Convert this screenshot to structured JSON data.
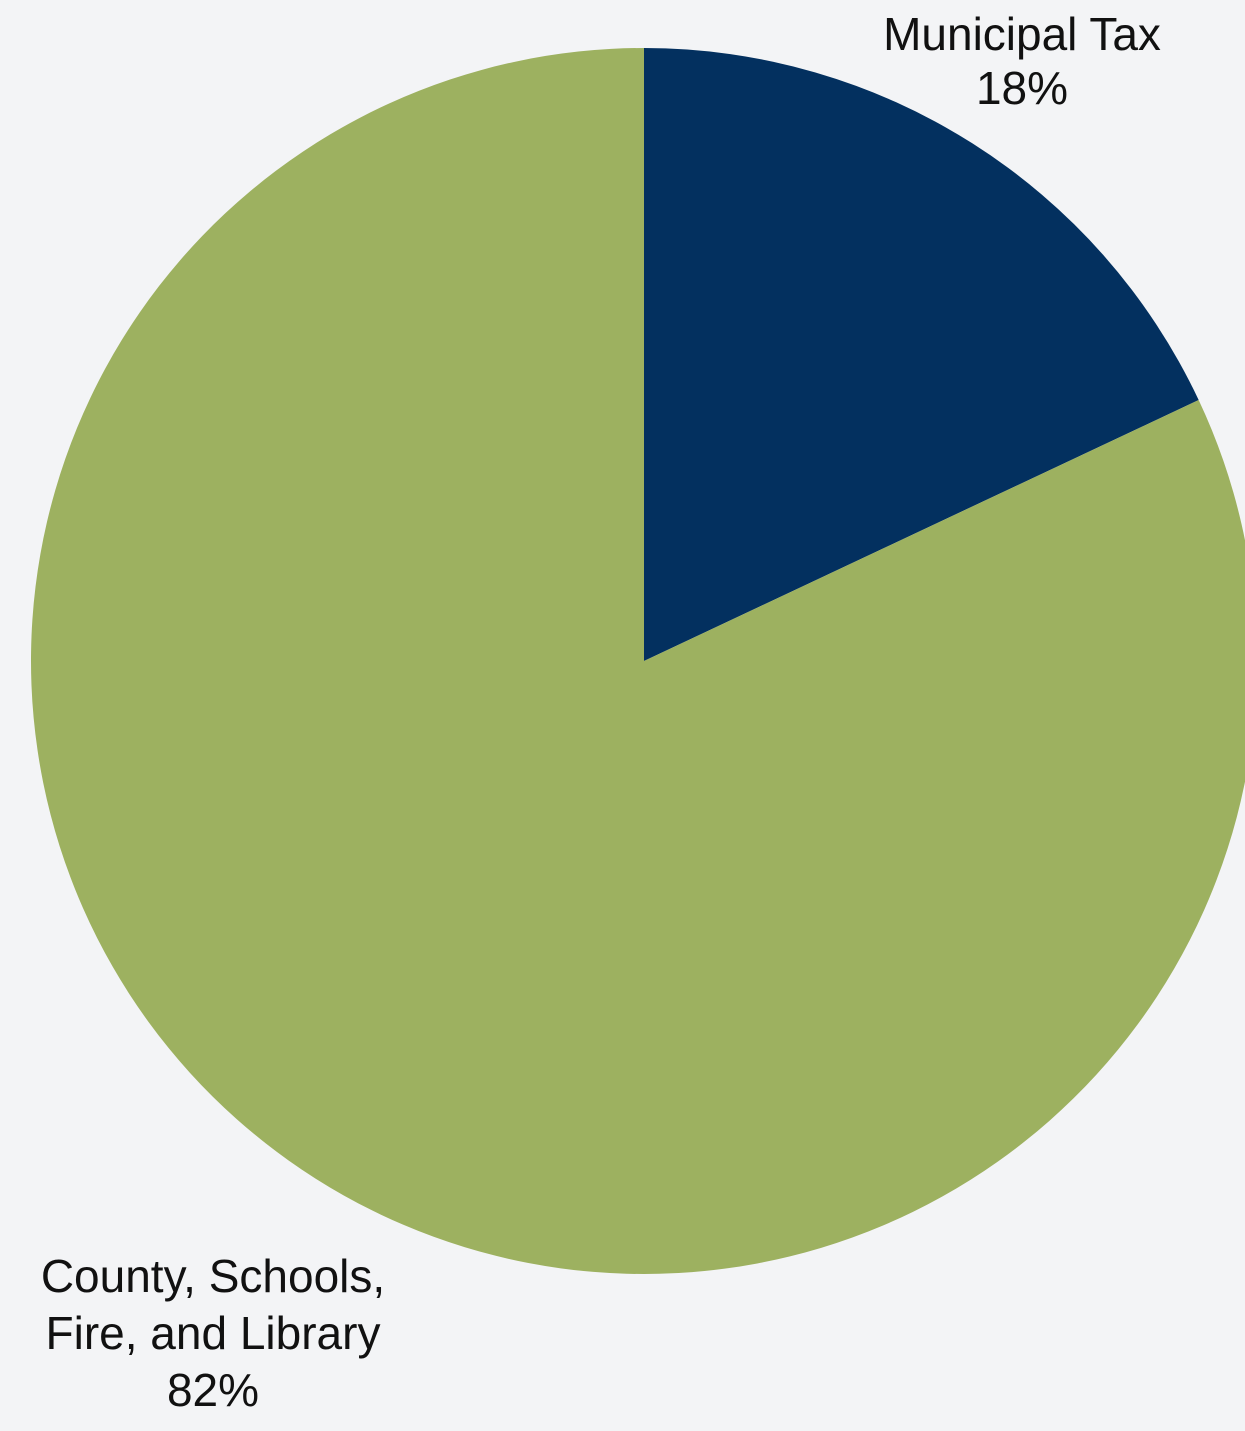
{
  "chart_data": {
    "type": "pie",
    "title": "",
    "slices": [
      {
        "label_lines": [
          "Municipal Tax"
        ],
        "value": 18,
        "value_label": "18%",
        "color": "#03305f"
      },
      {
        "label_lines": [
          "County, Schools,",
          "Fire, and Library"
        ],
        "value": 82,
        "value_label": "82%",
        "color": "#9db160"
      }
    ],
    "start_angle": "12 o'clock",
    "direction": "clockwise",
    "legend": "none"
  }
}
